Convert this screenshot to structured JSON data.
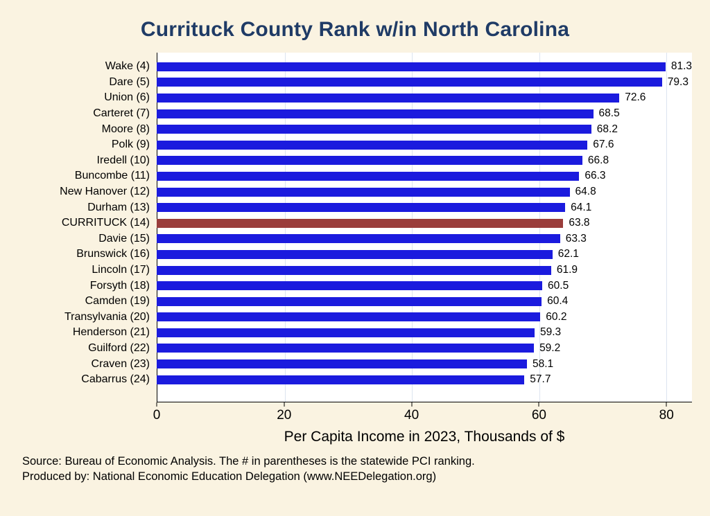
{
  "title": "Currituck County Rank w/in North Carolina",
  "chart_data": {
    "type": "bar",
    "orientation": "horizontal",
    "title": "Currituck County Rank w/in North Carolina",
    "categories": [
      "Wake  (4)",
      "Dare  (5)",
      "Union  (6)",
      "Carteret  (7)",
      "Moore  (8)",
      "Polk  (9)",
      "Iredell  (10)",
      "Buncombe (11)",
      "New Hanover (12)",
      "Durham (13)",
      "CURRITUCK (14)",
      "Davie  (15)",
      "Brunswick (16)",
      "Lincoln (17)",
      "Forsyth (18)",
      "Camden (19)",
      "Transylvania (20)",
      "Henderson (21)",
      "Guilford (22)",
      "Craven (23)",
      "Cabarrus (24)"
    ],
    "values": [
      81.3,
      79.3,
      72.6,
      68.5,
      68.2,
      67.6,
      66.8,
      66.3,
      64.8,
      64.1,
      63.8,
      63.3,
      62.1,
      61.9,
      60.5,
      60.4,
      60.2,
      59.3,
      59.2,
      58.1,
      57.7
    ],
    "highlight_category": "CURRITUCK (14)",
    "xlabel": "Per Capita Income in 2023, Thousands of $",
    "ylabel": "",
    "x_ticks": [
      0,
      20,
      40,
      60,
      80
    ],
    "xlim": [
      0,
      84
    ],
    "grid": true,
    "value_labels": true,
    "legend": "none"
  },
  "colors": {
    "background": "#FAF3E1",
    "plot_background": "#FFFFFF",
    "bar": "#1B1BDE",
    "highlight_bar": "#9A3D3B",
    "title": "#1F3B66",
    "gridline": "#DCE4EF"
  },
  "footer": {
    "source_line": "Source: Bureau of Economic Analysis. The # in parentheses is the statewide PCI ranking.",
    "produced_line": "Produced by: National Economic Education Delegation (www.NEEDelegation.org)"
  }
}
